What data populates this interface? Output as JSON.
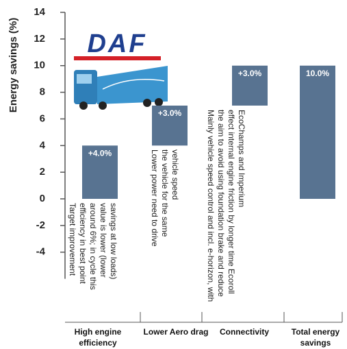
{
  "chart_data": {
    "type": "waterfall",
    "ylabel": "Energy savings (%)",
    "logo": "DAF",
    "categories": [
      "High engine efficiency",
      "Lower Aero drag",
      "Connectivity",
      "Total energy savings"
    ],
    "measure": [
      "relative",
      "relative",
      "relative",
      "total"
    ],
    "values": [
      4,
      3,
      3,
      10
    ],
    "value_labels": [
      "+4.0%",
      "+3.0%",
      "+3.0%",
      "10.0%"
    ],
    "annotations": [
      "Target improvement efficiency in best point around 6%; in cycle this value is lower (lower savings at low loads)",
      "Lower power need to drive the vehicle for the same vehicle speed",
      "Mainly vehicle speed control and incl. e-horizon, with the aim to avoid using foundation brake and reduce effect internal engine friction by longer time Ecoroll EcoChamps and Imperium"
    ],
    "color": "#587391",
    "ylim": [
      -6,
      14
    ],
    "yticks": [
      -4,
      -2,
      0,
      2,
      4,
      6,
      8,
      10,
      12,
      14
    ]
  }
}
